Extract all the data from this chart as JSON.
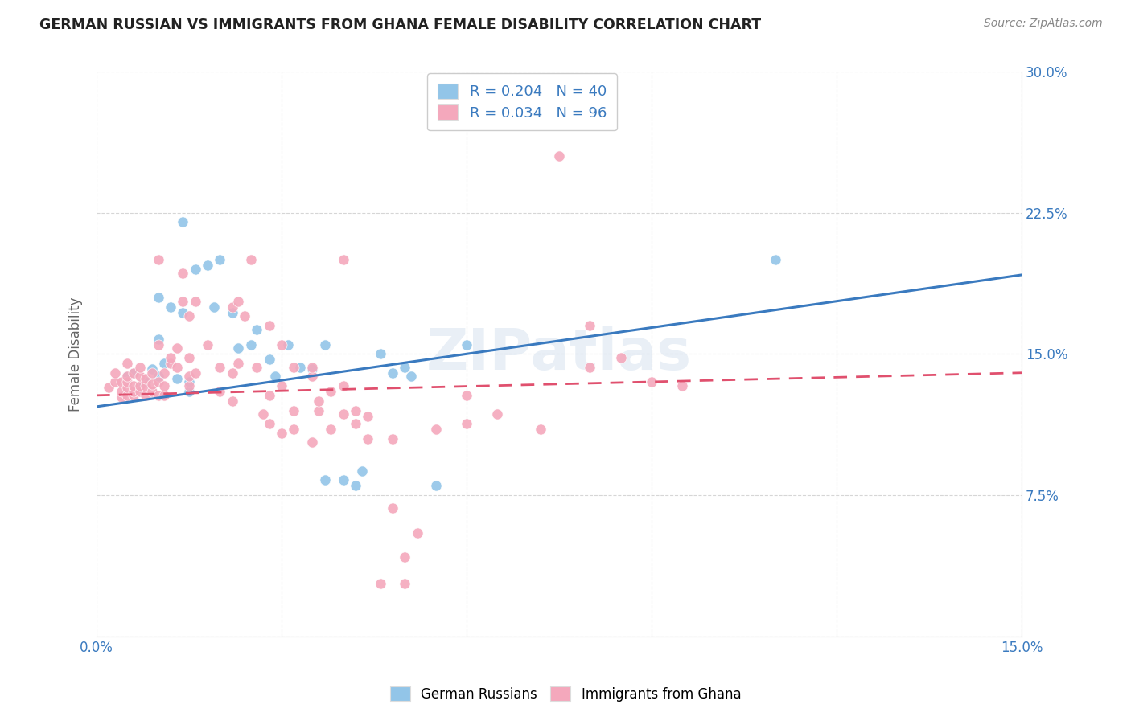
{
  "title": "GERMAN RUSSIAN VS IMMIGRANTS FROM GHANA FEMALE DISABILITY CORRELATION CHART",
  "source": "Source: ZipAtlas.com",
  "ylabel": "Female Disability",
  "legend_label1": "German Russians",
  "legend_label2": "Immigrants from Ghana",
  "r1": 0.204,
  "n1": 40,
  "r2": 0.034,
  "n2": 96,
  "color_blue": "#92c5e8",
  "color_pink": "#f4a8bc",
  "color_blue_text": "#3a7abf",
  "line_blue": "#3a7abf",
  "line_pink": "#e0506e",
  "watermark": "ZIPatlas",
  "xlim": [
    0.0,
    0.15
  ],
  "ylim": [
    0.0,
    0.3
  ],
  "blue_points": [
    [
      0.005,
      0.138
    ],
    [
      0.006,
      0.14
    ],
    [
      0.007,
      0.132
    ],
    [
      0.008,
      0.135
    ],
    [
      0.009,
      0.142
    ],
    [
      0.01,
      0.138
    ],
    [
      0.01,
      0.18
    ],
    [
      0.01,
      0.158
    ],
    [
      0.011,
      0.145
    ],
    [
      0.012,
      0.175
    ],
    [
      0.013,
      0.137
    ],
    [
      0.014,
      0.172
    ],
    [
      0.014,
      0.22
    ],
    [
      0.015,
      0.13
    ],
    [
      0.015,
      0.135
    ],
    [
      0.016,
      0.195
    ],
    [
      0.018,
      0.197
    ],
    [
      0.019,
      0.175
    ],
    [
      0.02,
      0.2
    ],
    [
      0.022,
      0.172
    ],
    [
      0.023,
      0.153
    ],
    [
      0.025,
      0.155
    ],
    [
      0.026,
      0.163
    ],
    [
      0.028,
      0.147
    ],
    [
      0.029,
      0.138
    ],
    [
      0.031,
      0.155
    ],
    [
      0.033,
      0.143
    ],
    [
      0.035,
      0.142
    ],
    [
      0.037,
      0.155
    ],
    [
      0.037,
      0.083
    ],
    [
      0.04,
      0.083
    ],
    [
      0.042,
      0.08
    ],
    [
      0.043,
      0.088
    ],
    [
      0.046,
      0.15
    ],
    [
      0.048,
      0.14
    ],
    [
      0.05,
      0.143
    ],
    [
      0.051,
      0.138
    ],
    [
      0.055,
      0.08
    ],
    [
      0.06,
      0.155
    ],
    [
      0.11,
      0.2
    ]
  ],
  "pink_points": [
    [
      0.002,
      0.132
    ],
    [
      0.003,
      0.135
    ],
    [
      0.003,
      0.14
    ],
    [
      0.004,
      0.127
    ],
    [
      0.004,
      0.13
    ],
    [
      0.004,
      0.135
    ],
    [
      0.005,
      0.128
    ],
    [
      0.005,
      0.132
    ],
    [
      0.005,
      0.135
    ],
    [
      0.005,
      0.138
    ],
    [
      0.005,
      0.145
    ],
    [
      0.006,
      0.128
    ],
    [
      0.006,
      0.13
    ],
    [
      0.006,
      0.133
    ],
    [
      0.006,
      0.14
    ],
    [
      0.007,
      0.13
    ],
    [
      0.007,
      0.133
    ],
    [
      0.007,
      0.138
    ],
    [
      0.007,
      0.143
    ],
    [
      0.008,
      0.128
    ],
    [
      0.008,
      0.133
    ],
    [
      0.008,
      0.137
    ],
    [
      0.009,
      0.13
    ],
    [
      0.009,
      0.134
    ],
    [
      0.009,
      0.14
    ],
    [
      0.01,
      0.128
    ],
    [
      0.01,
      0.135
    ],
    [
      0.01,
      0.155
    ],
    [
      0.01,
      0.2
    ],
    [
      0.011,
      0.128
    ],
    [
      0.011,
      0.133
    ],
    [
      0.011,
      0.14
    ],
    [
      0.012,
      0.145
    ],
    [
      0.012,
      0.148
    ],
    [
      0.013,
      0.143
    ],
    [
      0.013,
      0.153
    ],
    [
      0.014,
      0.178
    ],
    [
      0.014,
      0.193
    ],
    [
      0.015,
      0.133
    ],
    [
      0.015,
      0.138
    ],
    [
      0.015,
      0.148
    ],
    [
      0.015,
      0.17
    ],
    [
      0.016,
      0.14
    ],
    [
      0.016,
      0.178
    ],
    [
      0.018,
      0.155
    ],
    [
      0.02,
      0.13
    ],
    [
      0.02,
      0.143
    ],
    [
      0.022,
      0.125
    ],
    [
      0.022,
      0.14
    ],
    [
      0.022,
      0.175
    ],
    [
      0.023,
      0.145
    ],
    [
      0.023,
      0.178
    ],
    [
      0.024,
      0.17
    ],
    [
      0.025,
      0.2
    ],
    [
      0.026,
      0.143
    ],
    [
      0.027,
      0.118
    ],
    [
      0.028,
      0.113
    ],
    [
      0.028,
      0.128
    ],
    [
      0.028,
      0.165
    ],
    [
      0.03,
      0.108
    ],
    [
      0.03,
      0.133
    ],
    [
      0.03,
      0.155
    ],
    [
      0.032,
      0.11
    ],
    [
      0.032,
      0.12
    ],
    [
      0.032,
      0.143
    ],
    [
      0.035,
      0.103
    ],
    [
      0.035,
      0.138
    ],
    [
      0.035,
      0.143
    ],
    [
      0.036,
      0.12
    ],
    [
      0.036,
      0.125
    ],
    [
      0.038,
      0.11
    ],
    [
      0.038,
      0.13
    ],
    [
      0.04,
      0.118
    ],
    [
      0.04,
      0.133
    ],
    [
      0.04,
      0.2
    ],
    [
      0.042,
      0.113
    ],
    [
      0.042,
      0.12
    ],
    [
      0.044,
      0.105
    ],
    [
      0.044,
      0.117
    ],
    [
      0.046,
      0.028
    ],
    [
      0.048,
      0.068
    ],
    [
      0.048,
      0.105
    ],
    [
      0.05,
      0.028
    ],
    [
      0.05,
      0.042
    ],
    [
      0.052,
      0.055
    ],
    [
      0.055,
      0.11
    ],
    [
      0.06,
      0.113
    ],
    [
      0.06,
      0.128
    ],
    [
      0.065,
      0.118
    ],
    [
      0.072,
      0.11
    ],
    [
      0.075,
      0.255
    ],
    [
      0.08,
      0.143
    ],
    [
      0.08,
      0.165
    ],
    [
      0.085,
      0.148
    ],
    [
      0.09,
      0.135
    ],
    [
      0.095,
      0.133
    ]
  ],
  "blue_line": [
    [
      0.0,
      0.122
    ],
    [
      0.15,
      0.192
    ]
  ],
  "pink_line": [
    [
      0.0,
      0.128
    ],
    [
      0.15,
      0.14
    ]
  ]
}
